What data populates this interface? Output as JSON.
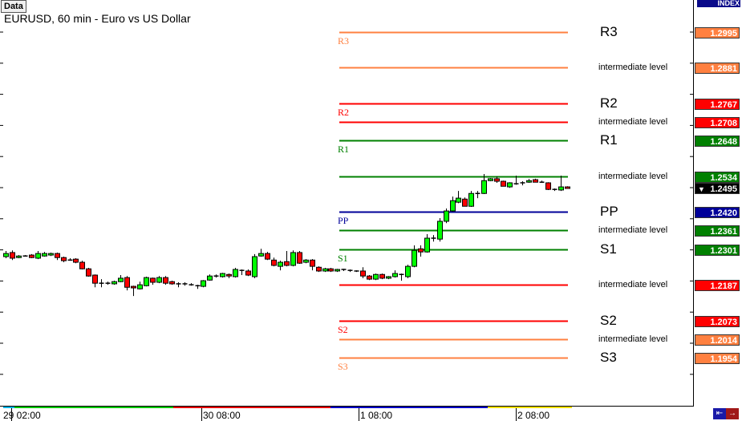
{
  "header": {
    "data_button": "Data",
    "title": "EURUSD, 60 min - Euro vs US Dollar",
    "index_label": "INDEX"
  },
  "price_axis": {
    "current_price": "1.2495",
    "current_marker_icon": "triangle-down-icon"
  },
  "time_axis": {
    "labels": [
      "29 02:00",
      "30 08:00",
      "1 08:00",
      "2 08:00"
    ],
    "session_colors": [
      "#00b4e6",
      "#00c800",
      "#e60000",
      "#0000c8",
      "#f0e000"
    ]
  },
  "pivot_levels": [
    {
      "left_label": "R3",
      "right_label": "R3",
      "price": "1.2995",
      "value": 1.2995,
      "color": "#ff8040",
      "major": true
    },
    {
      "left_label": "",
      "right_label": "intermediate level",
      "price": "1.2881",
      "value": 1.2881,
      "color": "#ff8040",
      "major": false
    },
    {
      "left_label": "R2",
      "right_label": "R2",
      "price": "1.2767",
      "value": 1.2767,
      "color": "#ff0000",
      "major": true
    },
    {
      "left_label": "",
      "right_label": "intermediate level",
      "price": "1.2708",
      "value": 1.2708,
      "color": "#ff0000",
      "major": false
    },
    {
      "left_label": "R1",
      "right_label": "R1",
      "price": "1.2648",
      "value": 1.2648,
      "color": "#008000",
      "major": true
    },
    {
      "left_label": "",
      "right_label": "intermediate level",
      "price": "1.2534",
      "value": 1.2534,
      "color": "#008000",
      "major": false
    },
    {
      "left_label": "PP",
      "right_label": "PP",
      "price": "1.2420",
      "value": 1.242,
      "color": "#000099",
      "major": true
    },
    {
      "left_label": "",
      "right_label": "intermediate level",
      "price": "1.2361",
      "value": 1.2361,
      "color": "#008000",
      "major": false
    },
    {
      "left_label": "S1",
      "right_label": "S1",
      "price": "1.2301",
      "value": 1.2301,
      "color": "#008000",
      "major": true
    },
    {
      "left_label": "",
      "right_label": "intermediate level",
      "price": "1.2187",
      "value": 1.2187,
      "color": "#ff0000",
      "major": false
    },
    {
      "left_label": "S2",
      "right_label": "S2",
      "price": "1.2073",
      "value": 1.2073,
      "color": "#ff0000",
      "major": true
    },
    {
      "left_label": "",
      "right_label": "intermediate level",
      "price": "1.2014",
      "value": 1.2014,
      "color": "#ff8040",
      "major": false
    },
    {
      "left_label": "S3",
      "right_label": "S3",
      "price": "1.1954",
      "value": 1.1954,
      "color": "#ff8040",
      "major": true
    }
  ],
  "colors": {
    "bull": "#00ff00",
    "bear": "#ff0000",
    "current": "#000000"
  },
  "chart_data": {
    "type": "candlestick",
    "symbol": "EURUSD",
    "timeframe": "60 min",
    "ohlc_format": [
      "open",
      "high",
      "low",
      "close"
    ],
    "candles": [
      [
        1.2277,
        1.2295,
        1.2272,
        1.2287
      ],
      [
        1.229,
        1.2297,
        1.2266,
        1.2272
      ],
      [
        1.2274,
        1.2282,
        1.2272,
        1.2279
      ],
      [
        1.2279,
        1.2282,
        1.2277,
        1.2279
      ],
      [
        1.2282,
        1.2285,
        1.2272,
        1.2274
      ],
      [
        1.2272,
        1.2295,
        1.2269,
        1.2287
      ],
      [
        1.2279,
        1.2292,
        1.2277,
        1.2287
      ],
      [
        1.2282,
        1.229,
        1.2279,
        1.2287
      ],
      [
        1.2287,
        1.229,
        1.2266,
        1.2274
      ],
      [
        1.2274,
        1.2277,
        1.2259,
        1.2264
      ],
      [
        1.2266,
        1.2272,
        1.2264,
        1.2266
      ],
      [
        1.2269,
        1.2272,
        1.2256,
        1.2259
      ],
      [
        1.2259,
        1.2264,
        1.2236,
        1.2238
      ],
      [
        1.2238,
        1.2241,
        1.2213,
        1.2215
      ],
      [
        1.2218,
        1.222,
        1.2179,
        1.2192
      ],
      [
        1.2192,
        1.2205,
        1.2179,
        1.2192
      ],
      [
        1.2192,
        1.2197,
        1.2187,
        1.2192
      ],
      [
        1.219,
        1.22,
        1.2187,
        1.2197
      ],
      [
        1.2197,
        1.2218,
        1.2195,
        1.2208
      ],
      [
        1.221,
        1.2215,
        1.2169,
        1.2179
      ],
      [
        1.2182,
        1.2184,
        1.2151,
        1.2177
      ],
      [
        1.2174,
        1.2197,
        1.2172,
        1.2187
      ],
      [
        1.2184,
        1.2213,
        1.2182,
        1.221
      ],
      [
        1.2208,
        1.221,
        1.2187,
        1.2195
      ],
      [
        1.2195,
        1.2215,
        1.2192,
        1.221
      ],
      [
        1.221,
        1.2215,
        1.2187,
        1.2192
      ],
      [
        1.2197,
        1.22,
        1.2187,
        1.219
      ],
      [
        1.219,
        1.2195,
        1.2179,
        1.219
      ],
      [
        1.219,
        1.2195,
        1.2184,
        1.219
      ],
      [
        1.2187,
        1.2192,
        1.2184,
        1.2187
      ],
      [
        1.2184,
        1.2187,
        1.2174,
        1.2184
      ],
      [
        1.2182,
        1.2202,
        1.2179,
        1.22
      ],
      [
        1.2202,
        1.222,
        1.22,
        1.2215
      ],
      [
        1.2215,
        1.222,
        1.221,
        1.2215
      ],
      [
        1.2213,
        1.2225,
        1.221,
        1.2223
      ],
      [
        1.222,
        1.2223,
        1.2208,
        1.2215
      ],
      [
        1.2213,
        1.2241,
        1.221,
        1.2236
      ],
      [
        1.2233,
        1.2236,
        1.2218,
        1.2231
      ],
      [
        1.2231,
        1.2236,
        1.2215,
        1.2218
      ],
      [
        1.2213,
        1.2285,
        1.2208,
        1.2277
      ],
      [
        1.2279,
        1.2302,
        1.2277,
        1.2287
      ],
      [
        1.2287,
        1.2292,
        1.2266,
        1.2269
      ],
      [
        1.2266,
        1.2274,
        1.2246,
        1.2249
      ],
      [
        1.2246,
        1.2264,
        1.2233,
        1.2259
      ],
      [
        1.2261,
        1.2295,
        1.2246,
        1.2249
      ],
      [
        1.2249,
        1.2297,
        1.2246,
        1.229
      ],
      [
        1.229,
        1.2295,
        1.2254,
        1.2256
      ],
      [
        1.2259,
        1.2269,
        1.2256,
        1.2266
      ],
      [
        1.2266,
        1.2269,
        1.2233,
        1.2246
      ],
      [
        1.2243,
        1.2246,
        1.2228,
        1.2231
      ],
      [
        1.2231,
        1.2241,
        1.2228,
        1.2238
      ],
      [
        1.2238,
        1.2241,
        1.2228,
        1.2231
      ],
      [
        1.2231,
        1.2238,
        1.2228,
        1.2236
      ],
      [
        1.2236,
        1.2238,
        1.2231,
        1.2236
      ],
      [
        1.2233,
        1.2236,
        1.2228,
        1.2233
      ],
      [
        1.2231,
        1.2233,
        1.2228,
        1.2231
      ],
      [
        1.2231,
        1.2243,
        1.2208,
        1.2215
      ],
      [
        1.2215,
        1.2218,
        1.2202,
        1.2205
      ],
      [
        1.2205,
        1.2223,
        1.2202,
        1.222
      ],
      [
        1.222,
        1.2223,
        1.2205,
        1.2208
      ],
      [
        1.2208,
        1.2215,
        1.2205,
        1.2213
      ],
      [
        1.2213,
        1.2233,
        1.221,
        1.2223
      ],
      [
        1.222,
        1.2223,
        1.22,
        1.2218
      ],
      [
        1.2213,
        1.2251,
        1.2208,
        1.2246
      ],
      [
        1.2246,
        1.2313,
        1.2243,
        1.2297
      ],
      [
        1.2302,
        1.2313,
        1.2277,
        1.2292
      ],
      [
        1.2292,
        1.2349,
        1.229,
        1.2336
      ],
      [
        1.2336,
        1.2346,
        1.2325,
        1.2336
      ],
      [
        1.2333,
        1.24,
        1.2325,
        1.239
      ],
      [
        1.239,
        1.2431,
        1.2384,
        1.2423
      ],
      [
        1.2423,
        1.2469,
        1.242,
        1.2456
      ],
      [
        1.2451,
        1.2487,
        1.2448,
        1.2464
      ],
      [
        1.2461,
        1.2466,
        1.2438,
        1.2438
      ],
      [
        1.2438,
        1.2487,
        1.2436,
        1.2479
      ],
      [
        1.2479,
        1.2487,
        1.2464,
        1.2479
      ],
      [
        1.2479,
        1.2541,
        1.2477,
        1.252
      ],
      [
        1.252,
        1.2528,
        1.2518,
        1.2526
      ],
      [
        1.2526,
        1.2533,
        1.2513,
        1.2518
      ],
      [
        1.2518,
        1.252,
        1.2502,
        1.2502
      ],
      [
        1.25,
        1.2515,
        1.2497,
        1.2513
      ],
      [
        1.251,
        1.2536,
        1.2507,
        1.251
      ],
      [
        1.2513,
        1.2518,
        1.2505,
        1.2513
      ],
      [
        1.2515,
        1.2525,
        1.2513,
        1.252
      ],
      [
        1.2523,
        1.2526,
        1.2515,
        1.2515
      ],
      [
        1.2515,
        1.252,
        1.2513,
        1.2515
      ],
      [
        1.2513,
        1.2515,
        1.249,
        1.2492
      ],
      [
        1.2492,
        1.2495,
        1.2487,
        1.2492
      ],
      [
        1.249,
        1.2536,
        1.2487,
        1.25
      ],
      [
        1.25,
        1.2502,
        1.2495,
        1.2495
      ]
    ]
  }
}
